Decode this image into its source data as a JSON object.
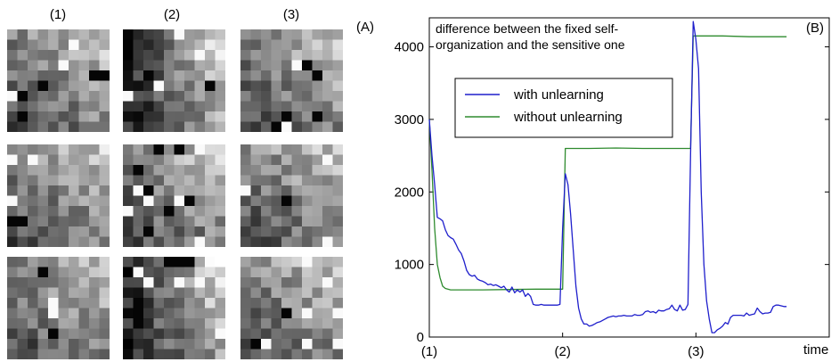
{
  "panel_a": {
    "label": "(A)",
    "columns": [
      "(1)",
      "(2)",
      "(3)"
    ]
  },
  "chart_data": {
    "type": "line",
    "panel_label": "(B)",
    "title": "",
    "annotation": [
      "difference between the fixed self-",
      "organization and the sensitive one"
    ],
    "xlabel": "time",
    "ylabel": "",
    "xlim": [
      0,
      150
    ],
    "ylim": [
      0,
      4400
    ],
    "yticks": [
      0,
      1000,
      2000,
      3000,
      4000
    ],
    "xtick_labels": [
      {
        "x": 0,
        "label": "(1)"
      },
      {
        "x": 50,
        "label": "(2)"
      },
      {
        "x": 100,
        "label": "(3)"
      }
    ],
    "legend_position": "upper-left-center",
    "series": [
      {
        "name": "with unlearning",
        "color": "#1f1fcc",
        "points": [
          [
            0,
            3000
          ],
          [
            1,
            2500
          ],
          [
            2,
            2100
          ],
          [
            3,
            1650
          ],
          [
            4,
            1630
          ],
          [
            5,
            1600
          ],
          [
            6,
            1480
          ],
          [
            7,
            1400
          ],
          [
            8,
            1370
          ],
          [
            9,
            1350
          ],
          [
            10,
            1280
          ],
          [
            11,
            1200
          ],
          [
            12,
            1150
          ],
          [
            13,
            1050
          ],
          [
            14,
            920
          ],
          [
            15,
            860
          ],
          [
            16,
            840
          ],
          [
            17,
            850
          ],
          [
            18,
            800
          ],
          [
            19,
            780
          ],
          [
            20,
            770
          ],
          [
            21,
            750
          ],
          [
            22,
            720
          ],
          [
            23,
            730
          ],
          [
            24,
            710
          ],
          [
            25,
            720
          ],
          [
            26,
            700
          ],
          [
            27,
            680
          ],
          [
            28,
            700
          ],
          [
            29,
            650
          ],
          [
            30,
            620
          ],
          [
            31,
            690
          ],
          [
            32,
            610
          ],
          [
            33,
            650
          ],
          [
            34,
            620
          ],
          [
            35,
            650
          ],
          [
            36,
            560
          ],
          [
            37,
            600
          ],
          [
            38,
            560
          ],
          [
            39,
            450
          ],
          [
            40,
            440
          ],
          [
            41,
            440
          ],
          [
            42,
            450
          ],
          [
            43,
            440
          ],
          [
            44,
            440
          ],
          [
            45,
            440
          ],
          [
            46,
            440
          ],
          [
            47,
            440
          ],
          [
            48,
            440
          ],
          [
            49,
            450
          ],
          [
            50,
            1500
          ],
          [
            51,
            2250
          ],
          [
            52,
            2100
          ],
          [
            53,
            1700
          ],
          [
            54,
            1200
          ],
          [
            55,
            700
          ],
          [
            56,
            400
          ],
          [
            57,
            250
          ],
          [
            58,
            180
          ],
          [
            59,
            180
          ],
          [
            60,
            150
          ],
          [
            61,
            160
          ],
          [
            62,
            180
          ],
          [
            63,
            200
          ],
          [
            64,
            210
          ],
          [
            65,
            230
          ],
          [
            66,
            250
          ],
          [
            67,
            270
          ],
          [
            68,
            280
          ],
          [
            69,
            290
          ],
          [
            70,
            280
          ],
          [
            71,
            290
          ],
          [
            72,
            290
          ],
          [
            73,
            300
          ],
          [
            74,
            290
          ],
          [
            75,
            290
          ],
          [
            76,
            290
          ],
          [
            77,
            310
          ],
          [
            78,
            300
          ],
          [
            79,
            300
          ],
          [
            80,
            310
          ],
          [
            81,
            350
          ],
          [
            82,
            360
          ],
          [
            83,
            340
          ],
          [
            84,
            350
          ],
          [
            85,
            330
          ],
          [
            86,
            370
          ],
          [
            87,
            360
          ],
          [
            88,
            360
          ],
          [
            89,
            380
          ],
          [
            90,
            390
          ],
          [
            91,
            440
          ],
          [
            92,
            380
          ],
          [
            93,
            360
          ],
          [
            94,
            440
          ],
          [
            95,
            370
          ],
          [
            96,
            380
          ],
          [
            97,
            450
          ],
          [
            98,
            2500
          ],
          [
            99,
            4350
          ],
          [
            100,
            4100
          ],
          [
            101,
            3700
          ],
          [
            102,
            2000
          ],
          [
            103,
            1000
          ],
          [
            104,
            500
          ],
          [
            105,
            250
          ],
          [
            106,
            60
          ],
          [
            107,
            60
          ],
          [
            108,
            100
          ],
          [
            109,
            120
          ],
          [
            110,
            150
          ],
          [
            111,
            200
          ],
          [
            112,
            180
          ],
          [
            113,
            270
          ],
          [
            114,
            300
          ],
          [
            115,
            300
          ],
          [
            116,
            300
          ],
          [
            117,
            300
          ],
          [
            118,
            290
          ],
          [
            119,
            330
          ],
          [
            120,
            300
          ],
          [
            121,
            310
          ],
          [
            122,
            320
          ],
          [
            123,
            400
          ],
          [
            124,
            350
          ],
          [
            125,
            320
          ],
          [
            126,
            330
          ],
          [
            127,
            330
          ],
          [
            128,
            340
          ],
          [
            129,
            420
          ],
          [
            130,
            440
          ],
          [
            131,
            440
          ],
          [
            132,
            430
          ],
          [
            133,
            420
          ],
          [
            134,
            420
          ]
        ]
      },
      {
        "name": "without unlearning",
        "color": "#2e8b2e",
        "points": [
          [
            0,
            3000
          ],
          [
            1,
            2300
          ],
          [
            2,
            1500
          ],
          [
            3,
            1000
          ],
          [
            4,
            820
          ],
          [
            5,
            700
          ],
          [
            6,
            670
          ],
          [
            8,
            650
          ],
          [
            20,
            650
          ],
          [
            30,
            655
          ],
          [
            40,
            660
          ],
          [
            49,
            660
          ],
          [
            50,
            660
          ],
          [
            51,
            2600
          ],
          [
            60,
            2600
          ],
          [
            70,
            2605
          ],
          [
            80,
            2600
          ],
          [
            90,
            2600
          ],
          [
            98,
            2600
          ],
          [
            99,
            4150
          ],
          [
            110,
            4150
          ],
          [
            120,
            4140
          ],
          [
            134,
            4140
          ]
        ]
      }
    ]
  }
}
